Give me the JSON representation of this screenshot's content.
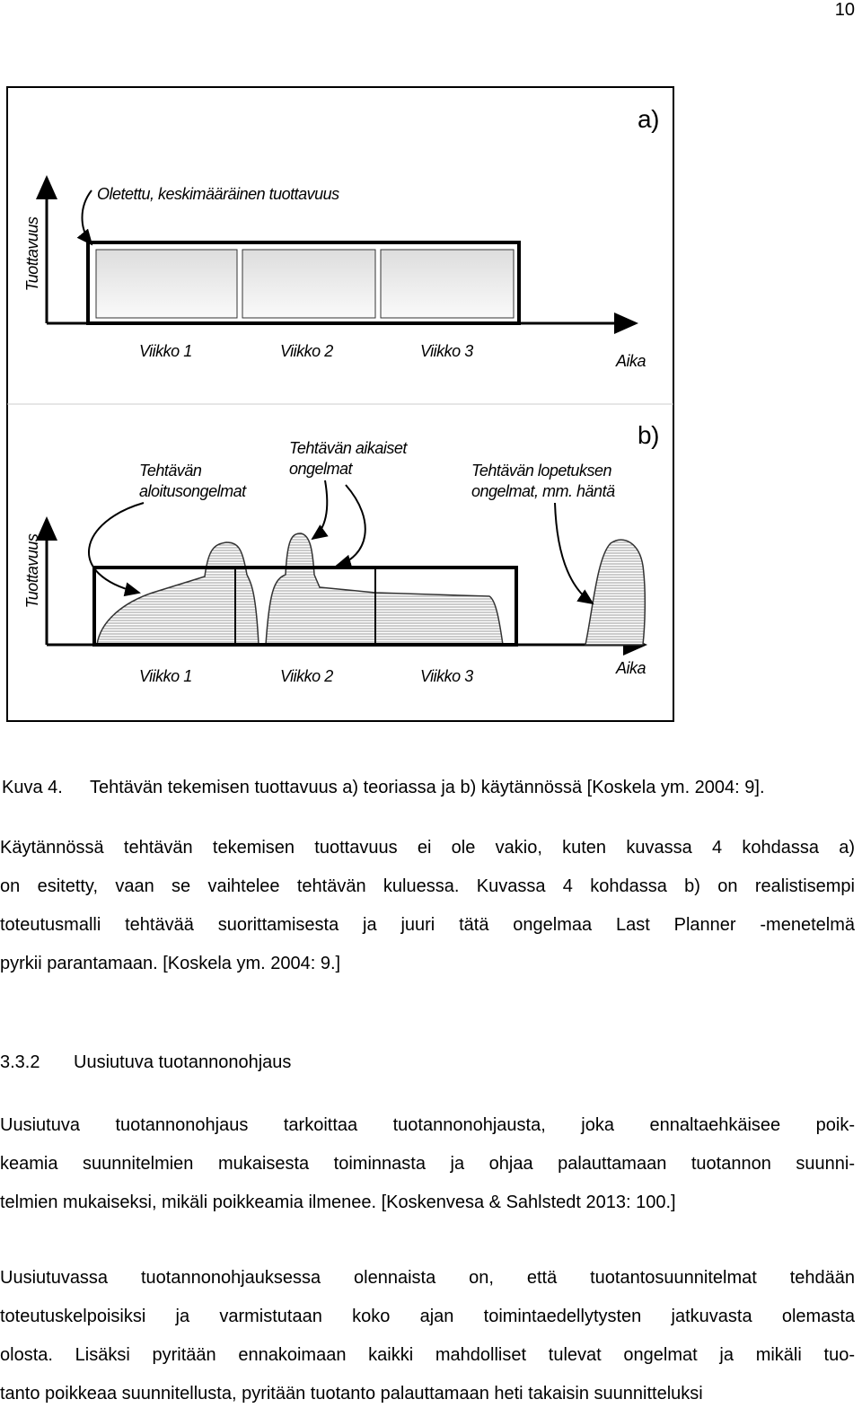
{
  "page_number": "10",
  "figure": {
    "panel_a": {
      "label": "a)",
      "annotation": "Oletettu, keskimääräinen tuottavuus",
      "y_axis": "Tuottavuus",
      "x_labels": [
        "Viikko 1",
        "Viikko 2",
        "Viikko 3"
      ],
      "x_axis": "Aika"
    },
    "panel_b": {
      "label": "b)",
      "annotations": [
        [
          "Tehtävän",
          "aloitusongelmat"
        ],
        [
          "Tehtävän aikaiset",
          "ongelmat"
        ],
        [
          "Tehtävän lopetuksen",
          "ongelmat, mm. häntä"
        ]
      ],
      "y_axis": "Tuottavuus",
      "x_labels": [
        "Viikko 1",
        "Viikko 2",
        "Viikko 3"
      ],
      "x_axis": "Aika"
    }
  },
  "caption": {
    "number": "Kuva 4.",
    "text": "Tehtävän tekemisen tuottavuus a) teoriassa ja b) käytännössä [Koskela ym. 2004: 9]."
  },
  "paragraph_1": [
    "Käytännössä tehtävän tekemisen tuottavuus ei ole vakio, kuten kuvassa 4 kohdassa a)",
    "on esitetty, vaan se vaihtelee tehtävän kuluessa. Kuvassa 4 kohdassa b) on realistisempi",
    "toteutusmalli tehtävää suorittamisesta ja juuri tätä ongelmaa Last Planner -menetelmä",
    "pyrkii parantamaan. [Koskela ym. 2004: 9.]"
  ],
  "section": {
    "number": "3.3.2",
    "title": "Uusiutuva tuotannonohjaus",
    "paragraphs": [
      [
        "Uusiutuva tuotannonohjaus tarkoittaa tuotannonohjausta, joka ennaltaehkäisee poik-",
        "keamia suunnitelmien mukaisesta toiminnasta ja ohjaa palauttamaan tuotannon suunni-",
        "telmien mukaiseksi, mikäli poikkeamia ilmenee. [Koskenvesa & Sahlstedt 2013: 100.]"
      ],
      [
        "Uusiutuvassa tuotannonohjauksessa olennaista on, että tuotantosuunnitelmat tehdään",
        "toteutuskelpoisiksi ja varmistutaan koko ajan toimintaedellytysten jatkuvasta olemasta",
        "olosta. Lisäksi pyritään ennakoimaan kaikki mahdolliset tulevat ongelmat ja mikäli tuo-",
        "tanto poikkeaa suunnitellusta, pyritään tuotanto palauttamaan heti takaisin suunnitteluksi"
      ]
    ]
  }
}
